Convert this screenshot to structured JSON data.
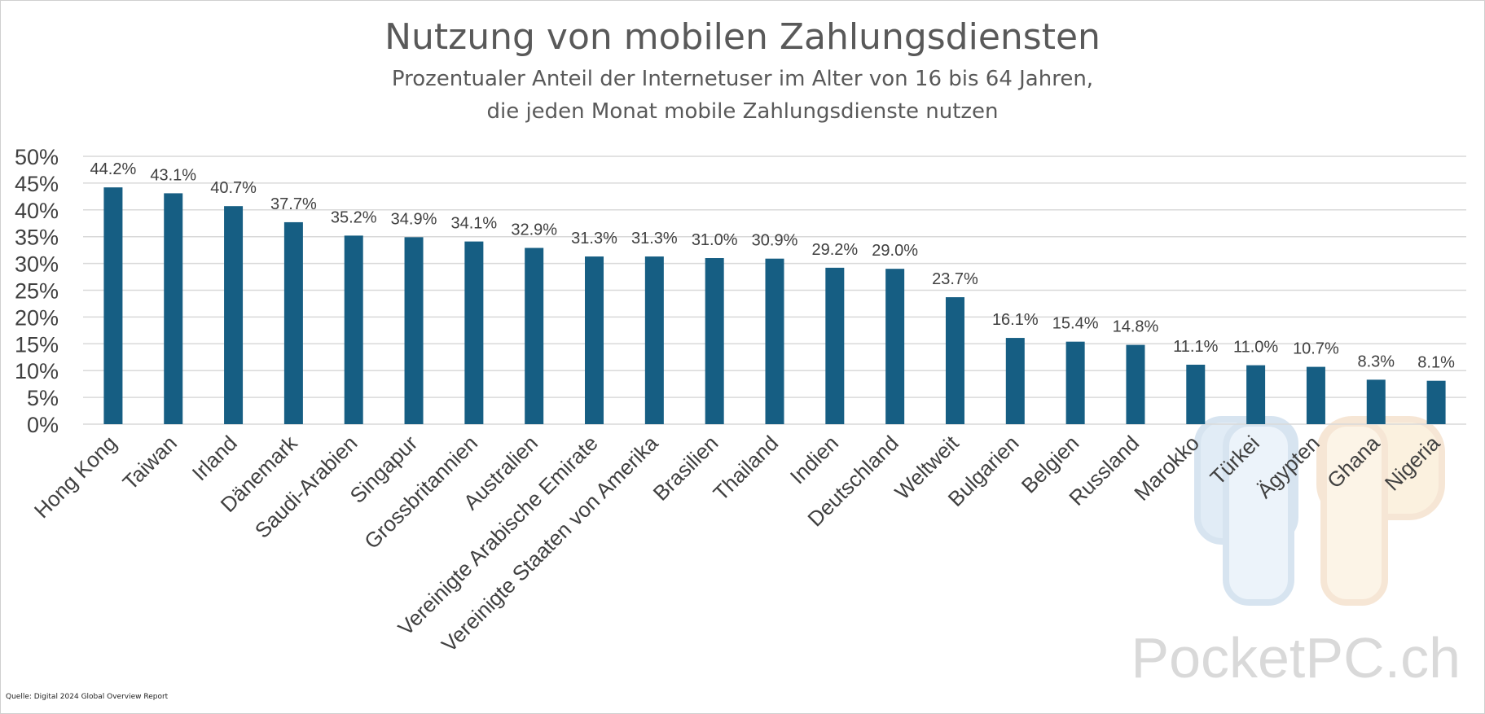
{
  "chart_data": {
    "type": "bar",
    "title": "Nutzung von mobilen Zahlungsdiensten",
    "subtitle_line1": "Prozentualer Anteil der Internetuser im Alter von 16 bis 64 Jahren,",
    "subtitle_line2": "die jeden Monat mobile Zahlungsdienste nutzen",
    "categories": [
      "Hong Kong",
      "Taiwan",
      "Irland",
      "Dänemark",
      "Saudi-Arabien",
      "Singapur",
      "Grossbritannien",
      "Australien",
      "Vereinigte Arabische Emirate",
      "Vereinigte Staaten von Amerika",
      "Brasilien",
      "Thailand",
      "Indien",
      "Deutschland",
      "Weltweit",
      "Bulgarien",
      "Belgien",
      "Russland",
      "Marokko",
      "Türkei",
      "Ägypten",
      "Ghana",
      "Nigeria"
    ],
    "values": [
      44.2,
      43.1,
      40.7,
      37.7,
      35.2,
      34.9,
      34.1,
      32.9,
      31.3,
      31.3,
      31.0,
      30.9,
      29.2,
      29.0,
      23.7,
      16.1,
      15.4,
      14.8,
      11.1,
      11.0,
      10.7,
      8.3,
      8.1
    ],
    "data_labels": [
      "44.2%",
      "43.1%",
      "40.7%",
      "37.7%",
      "35.2%",
      "34.9%",
      "34.1%",
      "32.9%",
      "31.3%",
      "31.3%",
      "31.0%",
      "30.9%",
      "29.2%",
      "29.0%",
      "23.7%",
      "16.1%",
      "15.4%",
      "14.8%",
      "11.1%",
      "11.0%",
      "10.7%",
      "8.3%",
      "8.1%"
    ],
    "ylim": [
      0,
      50
    ],
    "yticks": [
      "0%",
      "5%",
      "10%",
      "15%",
      "20%",
      "25%",
      "30%",
      "35%",
      "40%",
      "45%",
      "50%"
    ],
    "xlabel": "",
    "ylabel": "",
    "grid": true,
    "bar_color": "#165E83",
    "grid_color": "#d9d9d9"
  },
  "source": "Quelle: Digital 2024 Global Overview Report",
  "watermark": "PocketPC.ch"
}
